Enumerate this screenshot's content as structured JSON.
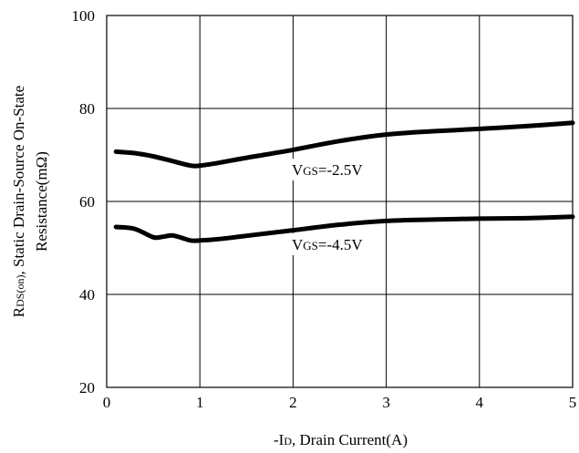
{
  "chart_data": {
    "type": "line",
    "xlabel_prefix": "-I",
    "xlabel_sub": "D",
    "xlabel_rest": ", Drain Current(A)",
    "ylabel_line1_prefix": "R",
    "ylabel_line1_sub": "DS(on)",
    "ylabel_line1_rest": ", Static Drain-Source On-State",
    "ylabel_line2": "Resistance(mΩ)",
    "xlim": [
      0,
      5
    ],
    "ylim": [
      20,
      100
    ],
    "x_ticks": [
      "0",
      "1",
      "2",
      "3",
      "4",
      "5"
    ],
    "y_ticks": [
      "20",
      "40",
      "60",
      "80",
      "100"
    ],
    "grid": true,
    "series": [
      {
        "name": "VGS=-2.5V",
        "label_prefix": "V",
        "label_sub": "GS",
        "label_rest": "=-2.5V",
        "x": [
          0.1,
          0.3,
          0.5,
          0.7,
          0.9,
          1.0,
          1.2,
          1.5,
          2.0,
          2.5,
          3.0,
          3.5,
          4.0,
          4.5,
          5.0
        ],
        "y": [
          70.7,
          70.4,
          69.7,
          68.7,
          67.7,
          67.7,
          68.3,
          69.4,
          71.1,
          73.0,
          74.4,
          75.1,
          75.6,
          76.2,
          76.9
        ]
      },
      {
        "name": "VGS=-4.5V",
        "label_prefix": "V",
        "label_sub": "GS",
        "label_rest": "=-4.5V",
        "x": [
          0.1,
          0.3,
          0.5,
          0.6,
          0.7,
          0.8,
          0.9,
          1.0,
          1.2,
          1.5,
          2.0,
          2.5,
          3.0,
          3.5,
          4.0,
          4.5,
          5.0
        ],
        "y": [
          54.5,
          54.1,
          52.3,
          52.4,
          52.7,
          52.2,
          51.6,
          51.6,
          51.9,
          52.6,
          53.8,
          55.0,
          55.8,
          56.1,
          56.3,
          56.4,
          56.7
        ]
      }
    ]
  }
}
